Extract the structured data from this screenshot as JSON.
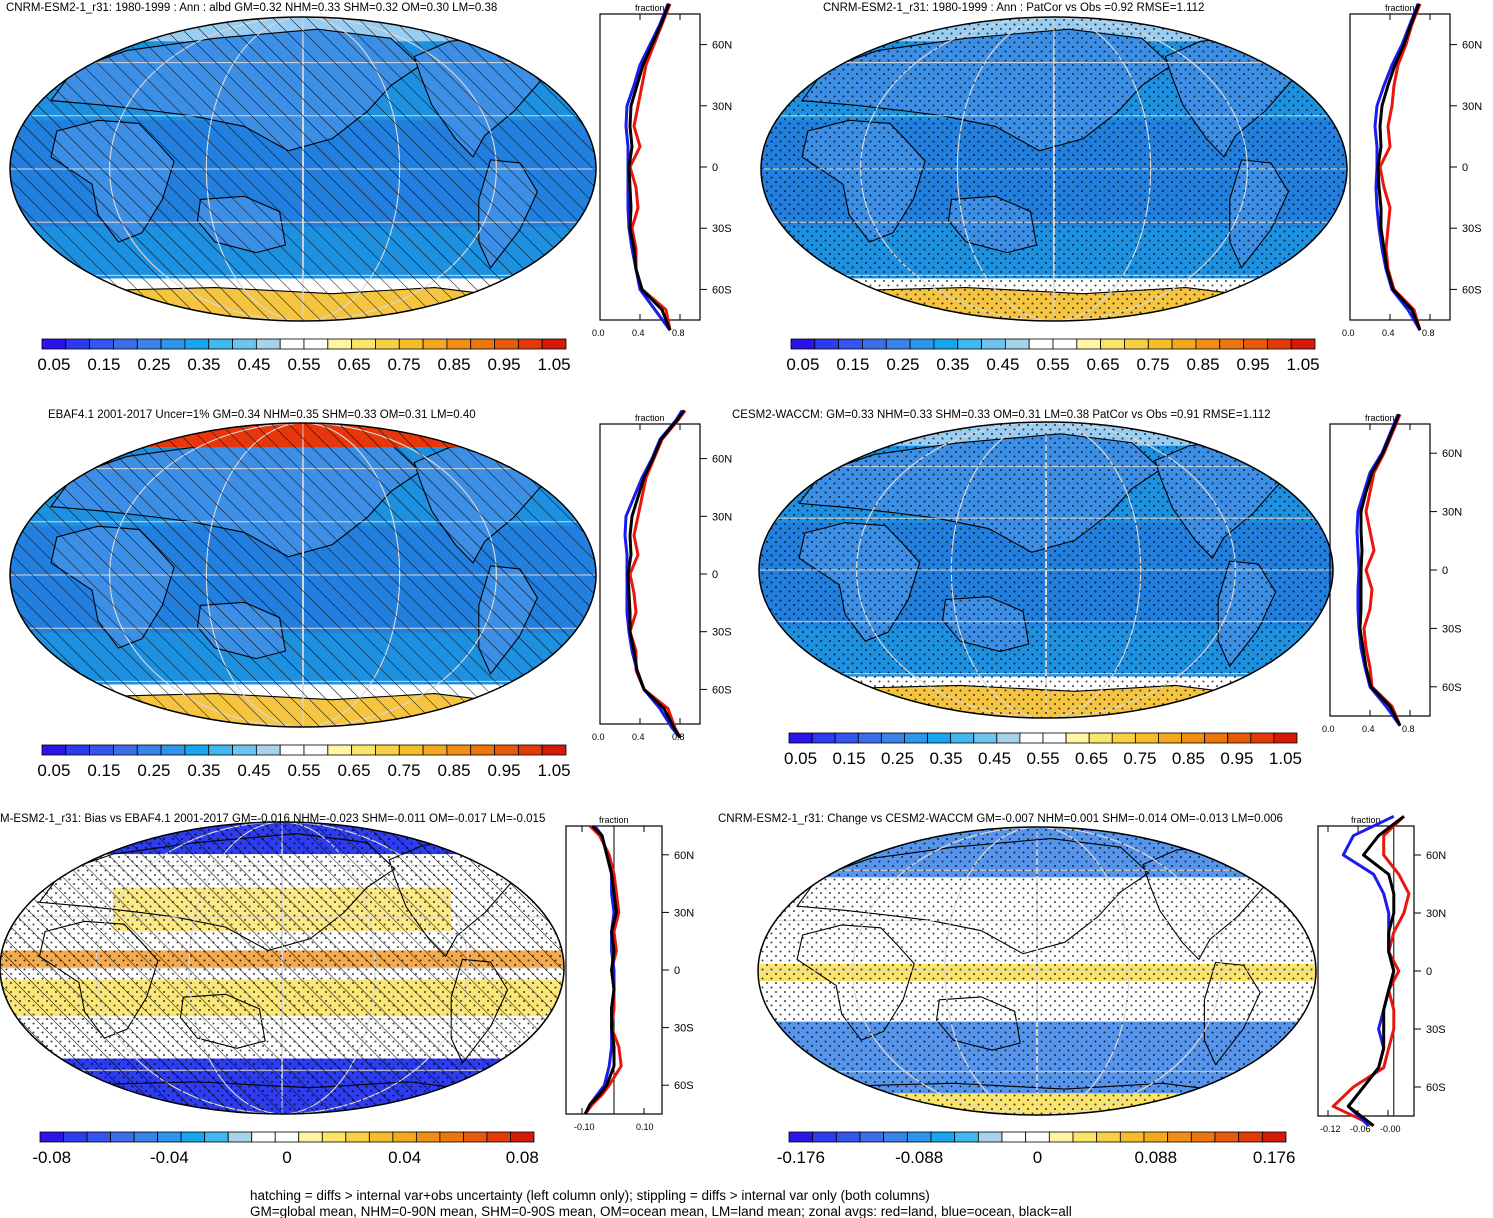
{
  "footnote": {
    "line1": "hatching = diffs > internal var+obs uncertainty (left column only); stippling = diffs > internal var only (both columns)",
    "line2": "GM=global mean, NHM=0-90N mean, SHM=0-90S mean, OM=ocean mean, LM=land mean; zonal avgs: red=land, blue=ocean, black=all"
  },
  "colors": {
    "ocean_bg": "#1e90e0",
    "land": "#3d8fe6",
    "polar": "#f5c542",
    "deep": "#2a62d8",
    "red": "#e8160f",
    "blue": "#1b1bf0",
    "black": "#000000",
    "grid": "#d8d8d8"
  },
  "absolute_colorbar": {
    "labels": [
      "0.05",
      "0.15",
      "0.25",
      "0.35",
      "0.45",
      "0.55",
      "0.65",
      "0.75",
      "0.85",
      "0.95",
      "1.05"
    ],
    "colors": [
      "#2b14e8",
      "#2d3cef",
      "#3555f0",
      "#3d6de9",
      "#3a83e9",
      "#2e96ea",
      "#18a7ef",
      "#40b8f0",
      "#6dc4ee",
      "#a7d3ea",
      "#ffffff",
      "#ffffff",
      "#fff5a3",
      "#fbe46a",
      "#f8d043",
      "#f5be29",
      "#f4a81f",
      "#f08f14",
      "#ec760c",
      "#e75a0a",
      "#e23b08",
      "#d51a08"
    ]
  },
  "bias_colorbar": {
    "labels": [
      "-0.08",
      "-0.04",
      "0",
      "0.04",
      "0.08"
    ],
    "colors": [
      "#2b14e8",
      "#2d3cef",
      "#3555f0",
      "#3d6de9",
      "#3a83e9",
      "#2e96ea",
      "#18a7ef",
      "#40b8f0",
      "#a7d3ea",
      "#ffffff",
      "#ffffff",
      "#fff5a3",
      "#fbe46a",
      "#f8d043",
      "#f5be29",
      "#f4a81f",
      "#f08f14",
      "#ec760c",
      "#e75a0a",
      "#e23b08",
      "#d51a08"
    ]
  },
  "change_colorbar": {
    "labels": [
      "-0.176",
      "-0.088",
      "0",
      "0.088",
      "0.176"
    ],
    "colors": [
      "#2b14e8",
      "#2d3cef",
      "#3555f0",
      "#3d6de9",
      "#3a83e9",
      "#2e96ea",
      "#18a7ef",
      "#40b8f0",
      "#a7d3ea",
      "#ffffff",
      "#ffffff",
      "#fff5a3",
      "#fbe46a",
      "#f8d043",
      "#f5be29",
      "#f4a81f",
      "#f08f14",
      "#ec760c",
      "#e75a0a",
      "#e23b08",
      "#d51a08"
    ]
  },
  "chart_data": [
    {
      "type": "heatmap",
      "title": "CNRM-ESM2-1_r31: 1980-1999 : Ann : albd GM=0.32 NHM=0.33 SHM=0.32 OM=0.30 LM=0.38",
      "colorbar": "absolute",
      "hatching": true,
      "stippling": false,
      "zonal_profile": {
        "type": "line",
        "xlabel": "fraction",
        "x_ticks": [
          "0.0",
          "0.4",
          "0.8"
        ],
        "y_ticks": [
          "60N",
          "30N",
          "0",
          "30S",
          "60S"
        ],
        "latitude": [
          80,
          70,
          60,
          50,
          40,
          30,
          20,
          10,
          0,
          -10,
          -20,
          -30,
          -40,
          -50,
          -60,
          -70,
          -80
        ],
        "series": [
          {
            "name": "land",
            "color": "red",
            "values": [
              0.7,
              0.62,
              0.54,
              0.46,
              0.42,
              0.38,
              0.34,
              0.4,
              0.3,
              0.36,
              0.38,
              0.32,
              0.36,
              0.36,
              0.42,
              0.66,
              0.7
            ]
          },
          {
            "name": "ocean",
            "color": "blue",
            "values": [
              0.68,
              0.6,
              0.5,
              0.4,
              0.34,
              0.27,
              0.26,
              0.28,
              0.28,
              0.28,
              0.28,
              0.29,
              0.32,
              0.36,
              0.4,
              0.55,
              0.7
            ]
          },
          {
            "name": "all",
            "color": "black",
            "values": [
              0.69,
              0.61,
              0.52,
              0.43,
              0.37,
              0.31,
              0.3,
              0.32,
              0.29,
              0.3,
              0.31,
              0.3,
              0.34,
              0.36,
              0.42,
              0.62,
              0.7
            ]
          }
        ]
      }
    },
    {
      "type": "heatmap",
      "title": "CNRM-ESM2-1_r31: 1980-1999 : Ann : PatCor vs Obs =0.92 RMSE=1.112",
      "colorbar": "absolute",
      "hatching": false,
      "stippling": true,
      "zonal_profile": {
        "type": "line",
        "xlabel": "fraction",
        "x_ticks": [
          "0.0",
          "0.4",
          "0.8"
        ],
        "y_ticks": [
          "60N",
          "30N",
          "0",
          "30S",
          "60S"
        ],
        "latitude": [
          80,
          70,
          60,
          50,
          40,
          30,
          20,
          10,
          0,
          -10,
          -20,
          -30,
          -40,
          -50,
          -60,
          -70,
          -80
        ],
        "series": [
          {
            "name": "land",
            "color": "red",
            "values": [
              0.7,
              0.62,
              0.56,
              0.48,
              0.44,
              0.42,
              0.38,
              0.4,
              0.3,
              0.34,
              0.4,
              0.38,
              0.36,
              0.38,
              0.44,
              0.64,
              0.7
            ]
          },
          {
            "name": "ocean",
            "color": "blue",
            "values": [
              0.68,
              0.6,
              0.52,
              0.42,
              0.34,
              0.27,
              0.25,
              0.27,
              0.27,
              0.26,
              0.27,
              0.29,
              0.32,
              0.36,
              0.42,
              0.58,
              0.7
            ]
          },
          {
            "name": "all",
            "color": "black",
            "values": [
              0.69,
              0.61,
              0.54,
              0.45,
              0.38,
              0.32,
              0.3,
              0.31,
              0.28,
              0.29,
              0.31,
              0.31,
              0.34,
              0.37,
              0.43,
              0.62,
              0.7
            ]
          }
        ]
      }
    },
    {
      "type": "heatmap",
      "title": "EBAF4.1 2001-2017 Uncer=1% GM=0.34 NHM=0.35 SHM=0.33 OM=0.31 LM=0.40",
      "colorbar": "absolute",
      "hatching": true,
      "stippling": false,
      "zonal_profile": {
        "type": "line",
        "xlabel": "fraction",
        "x_ticks": [
          "0.0",
          "0.4",
          "0.8"
        ],
        "y_ticks": [
          "60N",
          "30N",
          "0",
          "30S",
          "60S"
        ],
        "latitude": [
          85,
          80,
          70,
          60,
          50,
          40,
          30,
          20,
          10,
          0,
          -10,
          -20,
          -30,
          -40,
          -50,
          -60,
          -70,
          -80,
          -85
        ],
        "series": [
          {
            "name": "land",
            "color": "red",
            "values": [
              0.85,
              0.78,
              0.62,
              0.54,
              0.46,
              0.42,
              0.38,
              0.34,
              0.38,
              0.3,
              0.34,
              0.36,
              0.3,
              0.36,
              0.36,
              0.44,
              0.68,
              0.75,
              0.8
            ]
          },
          {
            "name": "ocean",
            "color": "blue",
            "values": [
              0.82,
              0.76,
              0.6,
              0.52,
              0.42,
              0.34,
              0.26,
              0.25,
              0.27,
              0.27,
              0.27,
              0.27,
              0.29,
              0.32,
              0.37,
              0.44,
              0.6,
              0.72,
              0.8
            ]
          },
          {
            "name": "all",
            "color": "black",
            "values": [
              0.84,
              0.77,
              0.61,
              0.53,
              0.44,
              0.38,
              0.32,
              0.3,
              0.31,
              0.28,
              0.29,
              0.3,
              0.3,
              0.34,
              0.37,
              0.44,
              0.64,
              0.74,
              0.8
            ]
          }
        ]
      }
    },
    {
      "type": "heatmap",
      "title": "CESM2-WACCM: GM=0.33 NHM=0.33 SHM=0.33 OM=0.31 LM=0.38 PatCor vs Obs =0.91 RMSE=1.112",
      "colorbar": "absolute",
      "hatching": false,
      "stippling": true,
      "zonal_profile": {
        "type": "line",
        "xlabel": "fraction",
        "x_ticks": [
          "0.0",
          "0.4",
          "0.8"
        ],
        "y_ticks": [
          "60N",
          "30N",
          "0",
          "30S",
          "60S"
        ],
        "latitude": [
          80,
          70,
          60,
          50,
          40,
          30,
          20,
          10,
          0,
          -10,
          -20,
          -30,
          -40,
          -50,
          -60,
          -70,
          -80
        ],
        "series": [
          {
            "name": "land",
            "color": "red",
            "values": [
              0.7,
              0.62,
              0.54,
              0.44,
              0.4,
              0.36,
              0.4,
              0.44,
              0.36,
              0.42,
              0.4,
              0.34,
              0.36,
              0.4,
              0.42,
              0.62,
              0.7
            ]
          },
          {
            "name": "ocean",
            "color": "blue",
            "values": [
              0.68,
              0.6,
              0.52,
              0.4,
              0.34,
              0.28,
              0.27,
              0.28,
              0.29,
              0.28,
              0.28,
              0.29,
              0.31,
              0.35,
              0.4,
              0.56,
              0.7
            ]
          },
          {
            "name": "all",
            "color": "black",
            "values": [
              0.69,
              0.61,
              0.53,
              0.42,
              0.36,
              0.31,
              0.31,
              0.32,
              0.31,
              0.31,
              0.31,
              0.3,
              0.33,
              0.36,
              0.41,
              0.6,
              0.7
            ]
          }
        ]
      }
    },
    {
      "type": "heatmap",
      "title": "M-ESM2-1_r31: Bias vs EBAF4.1 2001-2017 GM=-0.016 NHM=-0.023 SHM=-0.011 OM=-0.017 LM=-0.015",
      "colorbar": "bias",
      "hatching": true,
      "stippling": true,
      "zonal_profile": {
        "type": "line",
        "xlabel": "fraction",
        "x_ticks": [
          "-0.10",
          "0.10"
        ],
        "y_ticks": [
          "60N",
          "30N",
          "0",
          "30S",
          "60S"
        ],
        "latitude": [
          75,
          70,
          60,
          50,
          40,
          30,
          20,
          10,
          0,
          -10,
          -20,
          -30,
          -40,
          -50,
          -60,
          -65,
          -70,
          -75
        ],
        "series": [
          {
            "name": "land",
            "color": "red",
            "values": [
              -0.1,
              -0.06,
              -0.02,
              0.0,
              0.01,
              0.02,
              0.0,
              0.01,
              -0.01,
              0.0,
              0.0,
              -0.01,
              0.02,
              0.03,
              -0.02,
              -0.05,
              -0.09,
              -0.12
            ]
          },
          {
            "name": "ocean",
            "color": "blue",
            "values": [
              -0.08,
              -0.05,
              -0.03,
              -0.01,
              -0.01,
              0.0,
              -0.01,
              -0.01,
              0.0,
              0.0,
              -0.01,
              -0.01,
              -0.01,
              -0.02,
              -0.04,
              -0.07,
              -0.1,
              -0.12
            ]
          },
          {
            "name": "all",
            "color": "black",
            "values": [
              -0.09,
              -0.05,
              -0.03,
              -0.01,
              0.0,
              0.01,
              -0.01,
              0.0,
              -0.01,
              0.0,
              -0.01,
              -0.01,
              0.0,
              0.0,
              -0.03,
              -0.06,
              -0.1,
              -0.12
            ]
          }
        ]
      }
    },
    {
      "type": "heatmap",
      "title": "CNRM-ESM2-1_r31: Change vs CESM2-WACCM GM=-0.007 NHM=0.001 SHM=-0.014 OM=-0.013 LM=0.006",
      "colorbar": "change",
      "hatching": false,
      "stippling": true,
      "zonal_profile": {
        "type": "line",
        "xlabel": "fraction",
        "x_ticks": [
          "-0.12",
          "-0.06",
          "-0.00"
        ],
        "y_ticks": [
          "60N",
          "30N",
          "0",
          "30S",
          "60S"
        ],
        "latitude": [
          80,
          70,
          60,
          50,
          40,
          30,
          20,
          10,
          0,
          -10,
          -20,
          -30,
          -40,
          -50,
          -60,
          -70,
          -80
        ],
        "series": [
          {
            "name": "land",
            "color": "red",
            "values": [
              0.02,
              -0.02,
              -0.02,
              0.01,
              0.03,
              0.02,
              0.0,
              -0.01,
              0.01,
              -0.01,
              0.0,
              0.0,
              -0.01,
              -0.02,
              -0.08,
              -0.12,
              -0.04
            ]
          },
          {
            "name": "ocean",
            "color": "blue",
            "values": [
              0.0,
              -0.08,
              -0.1,
              -0.04,
              -0.02,
              -0.01,
              -0.01,
              -0.01,
              0.0,
              -0.01,
              -0.02,
              -0.03,
              -0.02,
              -0.03,
              -0.06,
              -0.09,
              -0.05
            ]
          },
          {
            "name": "all",
            "color": "black",
            "values": [
              0.02,
              -0.03,
              -0.06,
              -0.01,
              0.0,
              0.0,
              -0.01,
              -0.01,
              0.0,
              -0.01,
              -0.02,
              -0.02,
              -0.02,
              -0.03,
              -0.06,
              -0.09,
              -0.04
            ]
          }
        ]
      }
    }
  ]
}
